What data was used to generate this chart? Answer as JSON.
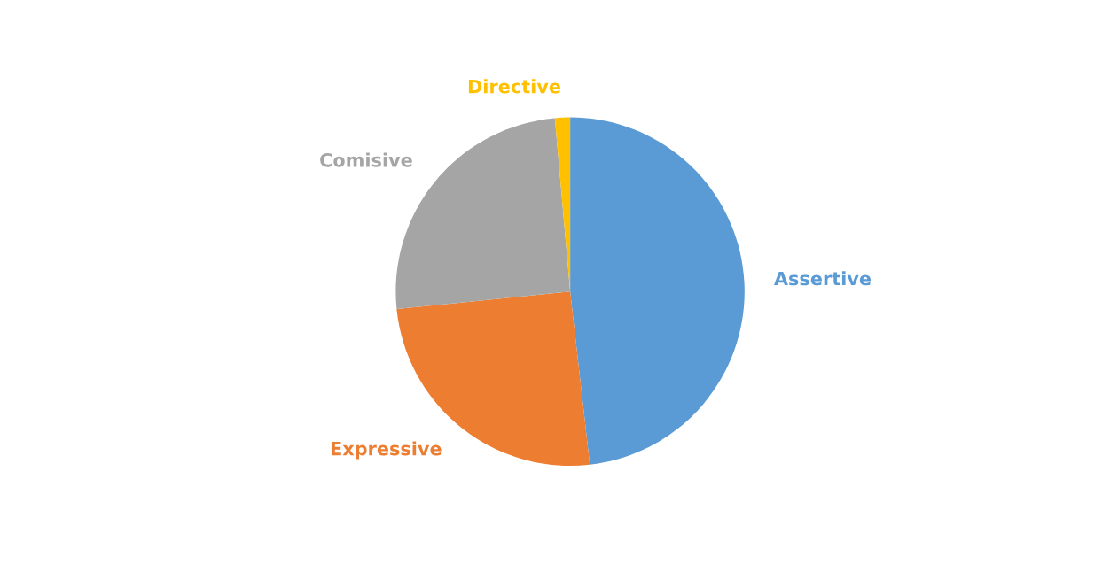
{
  "chart_data": {
    "type": "pie",
    "categories": [
      "Assertive",
      "Expressive",
      "Comisive",
      "Directive"
    ],
    "values": [
      48.2,
      25.2,
      25.2,
      1.4
    ],
    "colors": [
      "#5b9bd5",
      "#ed7d31",
      "#a5a5a5",
      "#ffc000"
    ],
    "legend": false
  }
}
